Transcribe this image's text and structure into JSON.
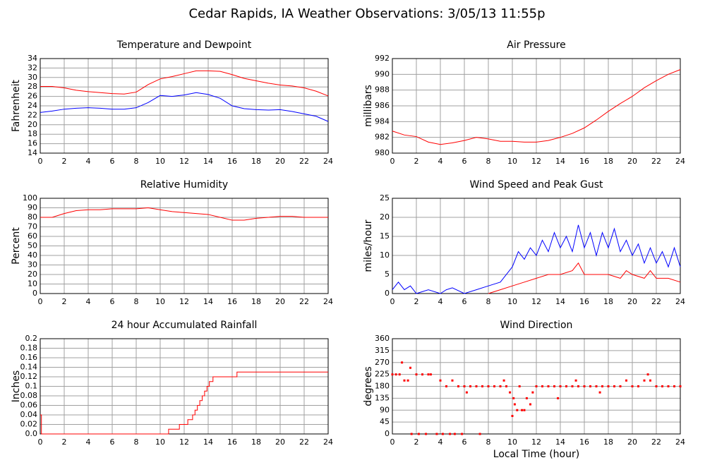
{
  "title": "Cedar Rapids, IA Weather Observations: 3/05/13 11:55p",
  "chart_data": [
    {
      "type": "line",
      "title": "Temperature and Dewpoint",
      "ylabel": "Fahrenheit",
      "x": [
        0,
        1,
        2,
        3,
        4,
        5,
        6,
        7,
        8,
        9,
        10,
        11,
        12,
        13,
        14,
        15,
        16,
        17,
        18,
        19,
        20,
        21,
        22,
        23,
        24
      ],
      "series": [
        {
          "color": "#ff0000",
          "values": [
            28.1,
            28.1,
            27.8,
            27.3,
            27.0,
            26.8,
            26.6,
            26.5,
            26.9,
            28.5,
            29.7,
            30.2,
            30.8,
            31.4,
            31.4,
            31.3,
            30.6,
            29.8,
            29.3,
            28.8,
            28.4,
            28.2,
            27.8,
            27.1,
            26.1
          ]
        },
        {
          "color": "#0000ff",
          "values": [
            22.6,
            22.9,
            23.3,
            23.5,
            23.6,
            23.5,
            23.3,
            23.3,
            23.6,
            24.7,
            26.2,
            26.0,
            26.3,
            26.8,
            26.4,
            25.6,
            24.0,
            23.4,
            23.2,
            23.1,
            23.2,
            22.8,
            22.3,
            21.8,
            20.7
          ]
        }
      ],
      "xlim": [
        0,
        24
      ],
      "xticks": [
        0,
        2,
        4,
        6,
        8,
        10,
        12,
        14,
        16,
        18,
        20,
        22,
        24
      ],
      "ylim": [
        14,
        34
      ],
      "yticks": [
        14,
        16,
        18,
        20,
        22,
        24,
        26,
        28,
        30,
        32,
        34
      ],
      "grid": true
    },
    {
      "type": "line",
      "title": "Air Pressure",
      "ylabel": "millibars",
      "x": [
        0,
        1,
        2,
        3,
        4,
        5,
        6,
        7,
        8,
        9,
        10,
        11,
        12,
        13,
        14,
        15,
        16,
        17,
        18,
        19,
        20,
        21,
        22,
        23,
        24
      ],
      "series": [
        {
          "color": "#ff0000",
          "values": [
            982.8,
            982.3,
            982.1,
            981.4,
            981.1,
            981.3,
            981.6,
            982.0,
            981.8,
            981.5,
            981.5,
            981.4,
            981.4,
            981.6,
            982.0,
            982.5,
            983.2,
            984.2,
            985.3,
            986.3,
            987.2,
            988.3,
            989.2,
            990.0,
            990.6
          ]
        }
      ],
      "xlim": [
        0,
        24
      ],
      "xticks": [
        0,
        2,
        4,
        6,
        8,
        10,
        12,
        14,
        16,
        18,
        20,
        22,
        24
      ],
      "ylim": [
        980,
        992
      ],
      "yticks": [
        980,
        982,
        984,
        986,
        988,
        990,
        992
      ],
      "grid": true
    },
    {
      "type": "line",
      "title": "Relative Humidity",
      "ylabel": "Percent",
      "x": [
        0,
        1,
        2,
        3,
        4,
        5,
        6,
        7,
        8,
        9,
        10,
        11,
        12,
        13,
        14,
        15,
        16,
        17,
        18,
        19,
        20,
        21,
        22,
        23,
        24
      ],
      "series": [
        {
          "color": "#ff0000",
          "values": [
            80,
            80,
            84,
            87,
            88,
            88,
            89,
            89,
            89,
            90,
            88,
            86,
            85,
            84,
            83,
            80,
            77,
            77,
            79,
            80,
            81,
            81,
            80,
            80,
            80
          ]
        }
      ],
      "xlim": [
        0,
        24
      ],
      "xticks": [
        0,
        2,
        4,
        6,
        8,
        10,
        12,
        14,
        16,
        18,
        20,
        22,
        24
      ],
      "ylim": [
        0,
        100
      ],
      "yticks": [
        0,
        10,
        20,
        30,
        40,
        50,
        60,
        70,
        80,
        90,
        100
      ],
      "grid": true
    },
    {
      "type": "line",
      "title": "Wind Speed and Peak Gust",
      "ylabel": "miles/hour",
      "series": [
        {
          "color": "#0000ff",
          "x": [
            0,
            0.5,
            1,
            1.5,
            2,
            3,
            4,
            4.5,
            5,
            6,
            7,
            8,
            9,
            10,
            10.5,
            11,
            11.5,
            12,
            12.5,
            13,
            13.5,
            14,
            14.5,
            15,
            15.5,
            16,
            16.5,
            17,
            17.5,
            18,
            18.5,
            19,
            19.5,
            20,
            20.5,
            21,
            21.5,
            22,
            22.5,
            23,
            23.5,
            24
          ],
          "values": [
            1,
            3,
            1,
            2,
            0,
            1,
            0,
            1,
            1.5,
            0,
            1,
            2,
            3,
            7,
            11,
            9,
            12,
            10,
            14,
            11,
            16,
            12,
            15,
            11,
            18,
            12,
            16,
            10,
            16,
            12,
            17,
            11,
            14,
            10,
            13,
            8,
            12,
            8,
            11,
            7,
            12,
            7
          ]
        },
        {
          "color": "#ff0000",
          "x": [
            8,
            9,
            10,
            11,
            12,
            13,
            14,
            15,
            15.5,
            16,
            17,
            18,
            19,
            19.5,
            20,
            21,
            21.5,
            22,
            23,
            24
          ],
          "values": [
            0,
            1,
            2,
            3,
            4,
            5,
            5,
            6,
            8,
            5,
            5,
            5,
            4,
            6,
            5,
            4,
            6,
            4,
            4,
            3
          ]
        }
      ],
      "xlim": [
        0,
        24
      ],
      "xticks": [
        0,
        2,
        4,
        6,
        8,
        10,
        12,
        14,
        16,
        18,
        20,
        22,
        24
      ],
      "ylim": [
        0,
        25
      ],
      "yticks": [
        0,
        5,
        10,
        15,
        20,
        25
      ],
      "grid": true
    },
    {
      "type": "line",
      "step": true,
      "title": "24 hour Accumulated Rainfall",
      "ylabel": "Inches",
      "x": [
        0,
        0.1,
        10.7,
        11.6,
        12.3,
        12.7,
        12.9,
        13.1,
        13.3,
        13.5,
        13.7,
        13.9,
        14.1,
        14.4,
        16.4,
        24
      ],
      "series": [
        {
          "color": "#ff0000",
          "values": [
            0.04,
            0,
            0.01,
            0.02,
            0.03,
            0.04,
            0.05,
            0.06,
            0.07,
            0.08,
            0.09,
            0.1,
            0.11,
            0.12,
            0.13,
            0.13
          ]
        }
      ],
      "xlim": [
        0,
        24
      ],
      "xticks": [
        0,
        2,
        4,
        6,
        8,
        10,
        12,
        14,
        16,
        18,
        20,
        22,
        24
      ],
      "ylim": [
        0,
        0.2
      ],
      "yticks": [
        {
          "value": 0,
          "label": "0.0"
        },
        0.02,
        0.04,
        0.06,
        0.08,
        0.1,
        0.12,
        0.14,
        0.16,
        0.18,
        0.2
      ],
      "grid": true
    },
    {
      "type": "scatter",
      "title": "Wind Direction",
      "ylabel": "degrees",
      "xlabel": "Local Time (hour)",
      "x": [
        0,
        0.3,
        0.6,
        0.8,
        1,
        1.3,
        1.5,
        1.6,
        2,
        2.2,
        2.5,
        2.8,
        3,
        3.2,
        3.7,
        4,
        4.2,
        4.5,
        4.8,
        5,
        5.2,
        5.5,
        5.8,
        6,
        6.2,
        6.5,
        7,
        7.3,
        7.5,
        8,
        8.5,
        9,
        9.3,
        9.5,
        9.8,
        10,
        10.1,
        10.2,
        10.4,
        10.6,
        10.8,
        11,
        11.2,
        11.5,
        11.7,
        12,
        12.5,
        13,
        13.5,
        13.8,
        14,
        14.5,
        15,
        15.3,
        15.5,
        16,
        16.5,
        17,
        17.3,
        17.5,
        18,
        18.5,
        19,
        19.5,
        20,
        20.5,
        21,
        21.3,
        21.5,
        22,
        22.5,
        23,
        23.5,
        24
      ],
      "series": [
        {
          "color": "#ff0000",
          "values": [
            225,
            225,
            225,
            270,
            202,
            202,
            250,
            0,
            225,
            0,
            225,
            0,
            225,
            225,
            0,
            202,
            0,
            180,
            0,
            202,
            0,
            180,
            0,
            180,
            157,
            180,
            180,
            0,
            180,
            180,
            180,
            180,
            202,
            180,
            157,
            68,
            135,
            112,
            90,
            180,
            90,
            90,
            135,
            112,
            157,
            180,
            180,
            180,
            180,
            135,
            180,
            180,
            180,
            202,
            180,
            180,
            180,
            180,
            157,
            180,
            180,
            180,
            180,
            202,
            180,
            180,
            202,
            225,
            202,
            180,
            180,
            180,
            180,
            180
          ]
        }
      ],
      "xlim": [
        0,
        24
      ],
      "xticks": [
        0,
        2,
        4,
        6,
        8,
        10,
        12,
        14,
        16,
        18,
        20,
        22,
        24
      ],
      "ylim": [
        0,
        360
      ],
      "yticks": [
        0,
        45,
        90,
        135,
        180,
        225,
        270,
        315,
        360
      ],
      "grid": true
    }
  ]
}
